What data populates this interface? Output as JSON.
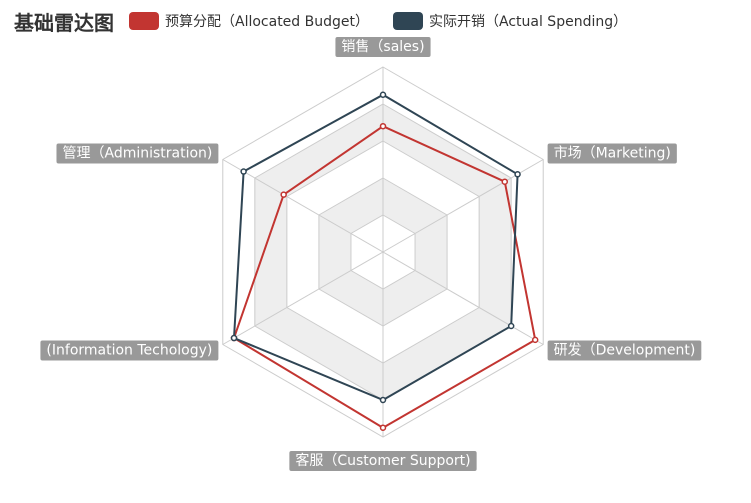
{
  "chart_data": {
    "type": "radar",
    "title": "基础雷达图",
    "max": 100,
    "split_number": 5,
    "indicators": [
      "销售（sales)",
      "市场（Marketing)",
      "研发（Development)",
      "客服（Customer Support)",
      "(Information Techology)",
      "管理（Administration)"
    ],
    "series": [
      {
        "name": "预算分配（Allocated Budget）",
        "color": "#c23531",
        "values": [
          68,
          76,
          95,
          95,
          93,
          62
        ]
      },
      {
        "name": "实际开销（Actual Spending）",
        "color": "#2f4554",
        "values": [
          85,
          84,
          80,
          80,
          93,
          87
        ]
      }
    ],
    "legend_position": "top"
  }
}
